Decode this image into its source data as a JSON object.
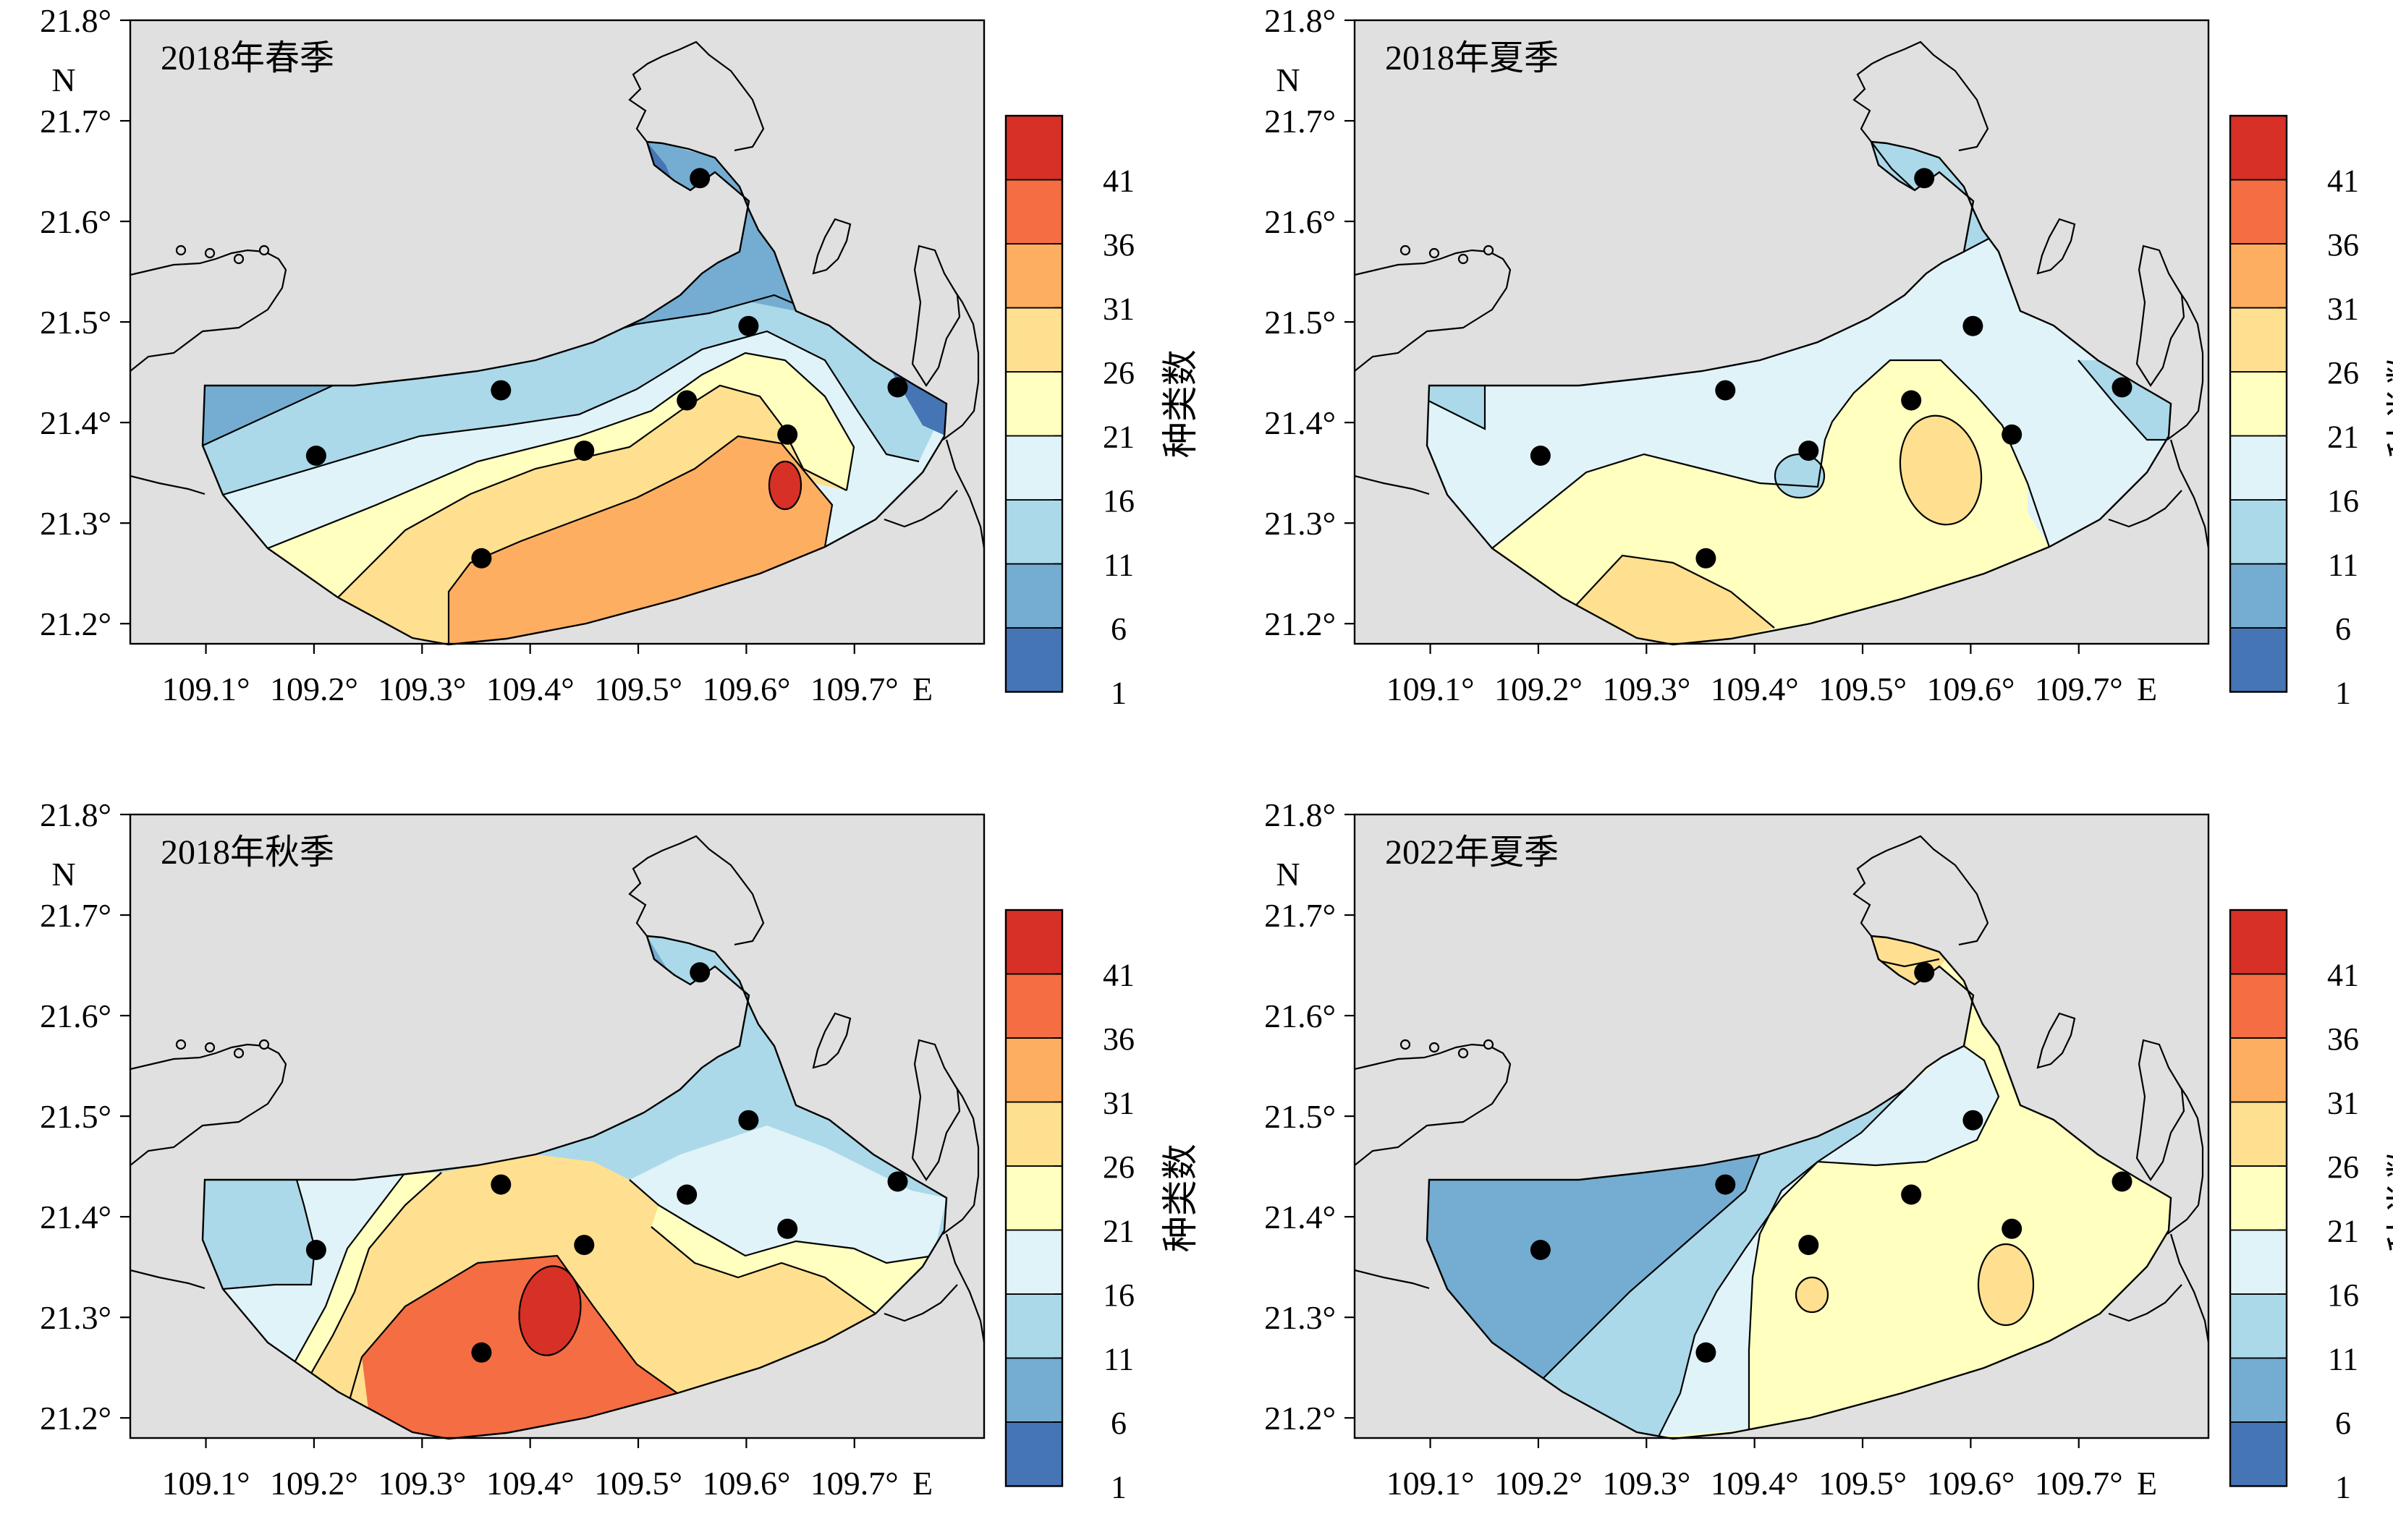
{
  "colorbar": {
    "label": "种类数",
    "ticks": [
      "1",
      "6",
      "11",
      "16",
      "21",
      "26",
      "31",
      "36",
      "41"
    ],
    "colors": [
      "#4575b4",
      "#74add1",
      "#abd9e9",
      "#e0f3f8",
      "#ffffbf",
      "#fee090",
      "#fdae61",
      "#f46d43",
      "#d73027"
    ]
  },
  "axes": {
    "x_ticks": [
      "109.1°",
      "109.2°",
      "109.3°",
      "109.4°",
      "109.5°",
      "109.6°",
      "109.7°"
    ],
    "x_unit": "E",
    "y_ticks": [
      "21.2°",
      "21.3°",
      "21.4°",
      "21.5°",
      "21.6°",
      "21.7°",
      "21.8°"
    ],
    "y_unit": "N",
    "xlim": [
      109.03,
      109.82
    ],
    "ylim": [
      21.18,
      21.8
    ]
  },
  "stations": [
    {
      "lon": 109.557,
      "lat": 21.643
    },
    {
      "lon": 109.602,
      "lat": 21.496
    },
    {
      "lon": 109.373,
      "lat": 21.432
    },
    {
      "lon": 109.545,
      "lat": 21.422
    },
    {
      "lon": 109.74,
      "lat": 21.435
    },
    {
      "lon": 109.638,
      "lat": 21.388
    },
    {
      "lon": 109.45,
      "lat": 21.372
    },
    {
      "lon": 109.202,
      "lat": 21.367
    },
    {
      "lon": 109.355,
      "lat": 21.265
    }
  ],
  "chart_data": [
    {
      "type": "heatmap",
      "title": "2018年春季",
      "xlabel": "",
      "ylabel": "",
      "levels": [
        1,
        6,
        11,
        16,
        21,
        26,
        31,
        36,
        41
      ]
    },
    {
      "type": "heatmap",
      "title": "2018年夏季",
      "xlabel": "",
      "ylabel": "",
      "levels": [
        1,
        6,
        11,
        16,
        21,
        26,
        31,
        36,
        41
      ]
    },
    {
      "type": "heatmap",
      "title": "2018年秋季",
      "xlabel": "",
      "ylabel": "",
      "levels": [
        1,
        6,
        11,
        16,
        21,
        26,
        31,
        36,
        41
      ]
    },
    {
      "type": "heatmap",
      "title": "2022年夏季",
      "xlabel": "",
      "ylabel": "",
      "levels": [
        1,
        6,
        11,
        16,
        21,
        26,
        31,
        36,
        41
      ]
    }
  ]
}
